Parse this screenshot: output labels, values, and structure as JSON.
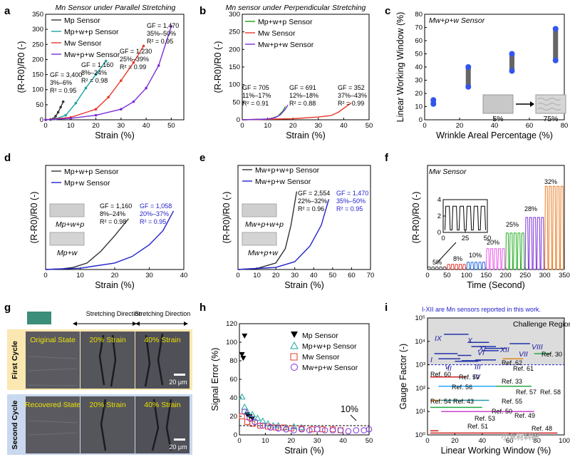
{
  "colors": {
    "Mp": "#333333",
    "Mpwp": "#1aa3a3",
    "Mw": "#e8392b",
    "Mwpw": "#7b2fd6",
    "green": "#1a9e1a",
    "blue": "#2222cc"
  },
  "panels": {
    "a": {
      "letter": "a",
      "title": "Mn Sensor under Parallel Stretching",
      "legend": [
        "Mp Sensor",
        "Mp+w+p Sensor",
        "Mw Sensor",
        "Mw+p+w Sensor"
      ],
      "annotations": [
        {
          "lines": [
            "GF = 3,400",
            "3%–6%",
            "R² = 0.95"
          ]
        },
        {
          "lines": [
            "GF = 1,160",
            "8%–24%",
            "R² = 0.98"
          ]
        },
        {
          "lines": [
            "GF = 1,230",
            "25%–39%",
            "R² = 0.99"
          ]
        },
        {
          "lines": [
            "GF = 1,470",
            "35%–50%",
            "R² = 0.95"
          ]
        }
      ]
    },
    "b": {
      "letter": "b",
      "title": "Mn sensor under Perpendicular Stretching",
      "legend": [
        "Mp+w+p Sensor",
        "Mw Sensor",
        "Mw+p+w Sensor"
      ],
      "annotations": [
        {
          "lines": [
            "GF = 705",
            "11%–17%",
            "R² = 0.91"
          ]
        },
        {
          "lines": [
            "GF = 691",
            "12%–18%",
            "R² = 0.88"
          ]
        },
        {
          "lines": [
            "GF = 352",
            "37%–43%",
            "R² = 0.99"
          ]
        }
      ]
    },
    "c": {
      "letter": "c",
      "title": "Mw+p+w Sensor",
      "inset": [
        "5%",
        "75%"
      ]
    },
    "d": {
      "letter": "d",
      "legend": [
        "Mp+w+p Sensor",
        "Mp+w Sensor"
      ],
      "annotations": [
        {
          "lines": [
            "GF = 1,160",
            "8%–24%",
            "R² = 0.98"
          ]
        },
        {
          "lines": [
            "GF = 1,058",
            "20%–37%",
            "R² = 0.95"
          ]
        }
      ],
      "inset_labels": [
        "Mp+w+p",
        "Mp+w"
      ]
    },
    "e": {
      "letter": "e",
      "legend": [
        "Mw+p+w+p Sensor",
        "Mw+p+w Sensor"
      ],
      "annotations": [
        {
          "lines": [
            "GF = 2,554",
            "22%–32%",
            "R² = 0.96"
          ]
        },
        {
          "lines": [
            "GF = 1,470",
            "35%–50%",
            "R² = 0.95"
          ]
        }
      ],
      "inset_labels": [
        "Mw+p+w+p",
        "Mw+p+w"
      ]
    },
    "f": {
      "letter": "f",
      "title": "Mw Sensor",
      "level_labels": [
        "5%",
        "8%",
        "10%",
        "20%",
        "25%",
        "28%",
        "32%"
      ]
    },
    "g": {
      "letter": "g",
      "headers": [
        "Stretching Direction",
        "Stretching Direction"
      ],
      "row_labels": [
        "First Cycle",
        "Second Cycle"
      ],
      "cells": [
        "Original State",
        "20% Strain",
        "40% Strain",
        "Recovered State",
        "20% Strain",
        "40% Strain"
      ],
      "scale_bar": "20 μm"
    },
    "h": {
      "letter": "h",
      "legend": [
        "Mp Sensor",
        "Mp+w+p Sensor",
        "Mw Sensor",
        "Mw+p+w Sensor"
      ],
      "threshold_label": "10%"
    },
    "i": {
      "letter": "i",
      "note": "I-XII are Mn sensors reported in this work.",
      "region_label": "Challenge Region",
      "roman": [
        "I",
        "II",
        "III",
        "IV",
        "V",
        "VI",
        "VII",
        "VIII",
        "IX",
        "X",
        "XI",
        "XII"
      ],
      "refs": [
        "Ref. 30",
        "Ref. 62",
        "Ref. 61",
        "Ref. 60",
        "Ref. 59",
        "Ref. 33",
        "Ref. 56",
        "Ref. 57",
        "Ref. 58",
        "Ref. 54",
        "Ref. 43",
        "Ref. 55",
        "Ref. 50",
        "Ref. 53",
        "Ref. 49",
        "Ref. 51",
        "Ref. 48"
      ],
      "watermark": "小东材料研"
    }
  },
  "chart_data": [
    {
      "type": "line",
      "panel": "a",
      "xlabel": "Strain (%)",
      "ylabel": "(R-R0)/R0 (-)",
      "xlim": [
        0,
        55
      ],
      "ylim": [
        0,
        350
      ],
      "xticks": [
        0,
        10,
        20,
        30,
        40,
        50
      ],
      "yticks": [
        0,
        50,
        100,
        150,
        200,
        250,
        300,
        350
      ],
      "series": [
        {
          "name": "Mp Sensor",
          "x": [
            0,
            2,
            3,
            4,
            5,
            6,
            7
          ],
          "y": [
            0,
            1,
            3,
            12,
            25,
            42,
            60
          ]
        },
        {
          "name": "Mp+w+p Sensor",
          "x": [
            0,
            4,
            8,
            12,
            16,
            20,
            24
          ],
          "y": [
            0,
            3,
            15,
            55,
            105,
            150,
            195
          ]
        },
        {
          "name": "Mw Sensor",
          "x": [
            0,
            10,
            20,
            25,
            30,
            35,
            39
          ],
          "y": [
            0,
            8,
            35,
            75,
            130,
            190,
            245
          ]
        },
        {
          "name": "Mw+p+w Sensor",
          "x": [
            0,
            10,
            20,
            30,
            35,
            40,
            45,
            50
          ],
          "y": [
            0,
            5,
            15,
            35,
            60,
            105,
            180,
            310
          ]
        }
      ]
    },
    {
      "type": "line",
      "panel": "b",
      "xlabel": "Strain (%)",
      "ylabel": "(R-R0)/R0 (-)",
      "xlim": [
        0,
        50
      ],
      "ylim": [
        0,
        300
      ],
      "xticks": [
        0,
        10,
        20,
        30,
        40,
        50
      ],
      "yticks": [
        0,
        50,
        100,
        150,
        200,
        250,
        300
      ],
      "series": [
        {
          "name": "Mp+w+p Sensor",
          "x": [
            0,
            10,
            12,
            14,
            16,
            17
          ],
          "y": [
            0,
            2,
            5,
            10,
            25,
            38
          ]
        },
        {
          "name": "Mw Sensor",
          "x": [
            0,
            20,
            30,
            35,
            38,
            41,
            43
          ],
          "y": [
            0,
            3,
            8,
            12,
            22,
            38,
            48
          ]
        },
        {
          "name": "Mw+p+w Sensor",
          "x": [
            0,
            10,
            13,
            15,
            17,
            18
          ],
          "y": [
            0,
            2,
            6,
            14,
            30,
            42
          ]
        }
      ]
    },
    {
      "type": "scatter",
      "panel": "c",
      "xlabel": "Wrinkle Areal Percentage (%)",
      "ylabel": "Linear Working Window (%)",
      "xlim": [
        0,
        80
      ],
      "ylim": [
        0,
        80
      ],
      "xticks": [
        0,
        20,
        40,
        60,
        80
      ],
      "yticks": [
        0,
        10,
        20,
        30,
        40,
        50,
        60,
        70,
        80
      ],
      "points": [
        {
          "x": 5,
          "low": 12,
          "high": 15
        },
        {
          "x": 25,
          "low": 25,
          "high": 40
        },
        {
          "x": 50,
          "low": 37,
          "high": 50
        },
        {
          "x": 75,
          "low": 45,
          "high": 69
        }
      ]
    },
    {
      "type": "line",
      "panel": "d",
      "xlabel": "Strain (%)",
      "ylabel": "(R-R0)/R0 (-)",
      "xlim": [
        0,
        40
      ],
      "ylim": [
        0,
        400
      ],
      "xticks": [
        0,
        10,
        20,
        30,
        40
      ],
      "yticks": [],
      "series": [
        {
          "name": "Mp+w+p Sensor",
          "x": [
            0,
            5,
            8,
            12,
            16,
            20,
            24
          ],
          "y": [
            0,
            3,
            8,
            25,
            70,
            130,
            195
          ]
        },
        {
          "name": "Mp+w Sensor",
          "x": [
            0,
            10,
            20,
            25,
            30,
            34,
            37
          ],
          "y": [
            0,
            5,
            25,
            50,
            95,
            150,
            225
          ]
        }
      ]
    },
    {
      "type": "line",
      "panel": "e",
      "xlabel": "Strain (%)",
      "ylabel": "(R-R0)/R0 (-)",
      "xlim": [
        0,
        70
      ],
      "ylim": [
        0,
        400
      ],
      "xticks": [
        0,
        10,
        20,
        30,
        40,
        50,
        60,
        70
      ],
      "yticks": [],
      "series": [
        {
          "name": "Mw+p+w+p Sensor",
          "x": [
            0,
            10,
            20,
            25,
            28,
            31
          ],
          "y": [
            0,
            4,
            25,
            80,
            170,
            300
          ]
        },
        {
          "name": "Mw+p+w Sensor",
          "x": [
            0,
            20,
            30,
            38,
            44,
            48
          ],
          "y": [
            0,
            8,
            30,
            90,
            170,
            270
          ]
        }
      ]
    },
    {
      "type": "line",
      "panel": "f",
      "xlabel": "Time (Second)",
      "ylabel": "(R-R0)/R0 (-)",
      "xlim": [
        0,
        350
      ],
      "ylim": [
        0,
        200
      ],
      "xticks": [
        0,
        50,
        100,
        150,
        200,
        250,
        300,
        350
      ],
      "yticks": [],
      "inset": {
        "xlim": [
          0,
          50
        ],
        "ylim": [
          0,
          4
        ],
        "xticks": [
          0,
          25,
          50
        ],
        "yticks": [
          0,
          2,
          4
        ]
      },
      "segments": [
        {
          "label": "5%",
          "t": [
            0,
            50
          ],
          "peak": 5
        },
        {
          "label": "8%",
          "t": [
            50,
            100
          ],
          "peak": 10
        },
        {
          "label": "10%",
          "t": [
            100,
            150
          ],
          "peak": 14
        },
        {
          "label": "20%",
          "t": [
            150,
            200
          ],
          "peak": 40
        },
        {
          "label": "25%",
          "t": [
            200,
            250
          ],
          "peak": 70
        },
        {
          "label": "28%",
          "t": [
            250,
            300
          ],
          "peak": 100
        },
        {
          "label": "32%",
          "t": [
            300,
            350
          ],
          "peak": 160
        }
      ]
    },
    {
      "type": "scatter",
      "panel": "h",
      "xlabel": "Strain (%)",
      "ylabel": "Signal Error (%)",
      "xlim": [
        0,
        50
      ],
      "ylim": [
        0,
        120
      ],
      "xticks": [
        0,
        10,
        20,
        30,
        40,
        50
      ],
      "yticks": [
        0,
        20,
        40,
        60,
        80,
        100,
        120
      ],
      "threshold": 10,
      "series": [
        {
          "name": "Mp Sensor",
          "x": [
            1,
            1.5,
            2,
            3,
            4,
            5
          ],
          "y": [
            87,
            83,
            107,
            22,
            20,
            18
          ]
        },
        {
          "name": "Mp+w+p Sensor",
          "x": [
            1,
            2,
            3,
            5,
            7,
            9,
            11,
            13,
            15,
            18,
            21,
            24
          ],
          "y": [
            41,
            30,
            25,
            22,
            18,
            15,
            12,
            10,
            10,
            8,
            9,
            8
          ]
        },
        {
          "name": "Mw Sensor",
          "x": [
            1,
            3,
            5,
            8,
            11,
            14,
            17,
            20,
            24,
            28,
            32,
            36,
            39
          ],
          "y": [
            20,
            14,
            12,
            10,
            9,
            8,
            8,
            7,
            7,
            6,
            6,
            6,
            5
          ]
        },
        {
          "name": "Mw+p+w Sensor",
          "x": [
            2,
            4,
            6,
            9,
            12,
            15,
            18,
            21,
            24,
            27,
            30,
            33,
            36,
            39,
            42,
            45,
            48,
            50
          ],
          "y": [
            25,
            18,
            14,
            10,
            8,
            7,
            6,
            5,
            6,
            5,
            6,
            5,
            5,
            5,
            4,
            5,
            5,
            6
          ]
        }
      ]
    },
    {
      "type": "scatter",
      "panel": "i",
      "xlabel": "Linear Working Window (%)",
      "ylabel": "Gauge Factor (-)",
      "xlim": [
        0,
        100
      ],
      "ylim": [
        1,
        100000
      ],
      "log_y": true,
      "xticks": [
        0,
        20,
        40,
        60,
        80,
        100
      ],
      "yticks": [
        1,
        10,
        100,
        1000,
        10000,
        100000
      ]
    }
  ]
}
